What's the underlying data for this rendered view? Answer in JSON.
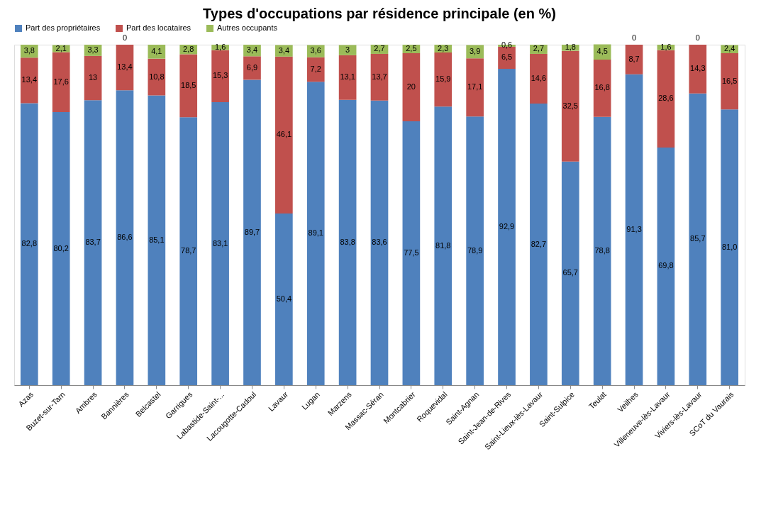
{
  "chart_data": {
    "type": "bar",
    "title": "Types d'occupations par résidence principale (en %)",
    "stacked": true,
    "legend": "top",
    "grid": false,
    "tick_labels": "x",
    "ylim": [
      0,
      100
    ],
    "categories": [
      "Azas",
      "Buzet-sur-Tarn",
      "Ambres",
      "Bannières",
      "Belcastel",
      "Garrigues",
      "Labastide-Saint-...",
      "Lacougotte-Cadoul",
      "Lavaur",
      "Lugan",
      "Marzens",
      "Massac-Séran",
      "Montcabrier",
      "Roquevidal",
      "Saint-Agnan",
      "Saint-Jean-de-Rives",
      "Saint-Lieux-lès-Lavaur",
      "Saint-Sulpice",
      "Teulat",
      "Veilhes",
      "Villeneuve-lès-Lavaur",
      "Viviers-lès-Lavaur",
      "SCoT du Vaurais"
    ],
    "series": [
      {
        "name": "Part des propriétaires",
        "color": "#4f81bd",
        "values": [
          82.8,
          80.2,
          83.7,
          86.6,
          85.1,
          78.7,
          83.1,
          89.7,
          50.4,
          89.1,
          83.8,
          83.6,
          77.5,
          81.8,
          78.9,
          92.9,
          82.7,
          65.7,
          78.8,
          91.3,
          69.8,
          85.7,
          81.0
        ],
        "value_labels": [
          "82,8",
          "80,2",
          "83,7",
          "86,6",
          "85,1",
          "78,7",
          "83,1",
          "89,7",
          "50,4",
          "89,1",
          "83,8",
          "83,6",
          "77,5",
          "81,8",
          "78,9",
          "92,9",
          "82,7",
          "65,7",
          "78,8",
          "91,3",
          "69,8",
          "85,7",
          "81,0"
        ]
      },
      {
        "name": "Part des locataires",
        "color": "#c0504d",
        "values": [
          13.4,
          17.6,
          13,
          13.4,
          10.8,
          18.5,
          15.3,
          6.9,
          46.1,
          7.2,
          13.1,
          13.7,
          20,
          15.9,
          17.1,
          6.5,
          14.6,
          32.5,
          16.8,
          8.7,
          28.6,
          14.3,
          16.5
        ],
        "value_labels": [
          "13,4",
          "17,6",
          "13",
          "13,4",
          "10,8",
          "18,5",
          "15,3",
          "6,9",
          "46,1",
          "7,2",
          "13,1",
          "13,7",
          "20",
          "15,9",
          "17,1",
          "6,5",
          "14,6",
          "32,5",
          "16,8",
          "8,7",
          "28,6",
          "14,3",
          "16,5"
        ]
      },
      {
        "name": "Autres occupants",
        "color": "#9bbb59",
        "values": [
          3.8,
          2.1,
          3.3,
          0,
          4.1,
          2.8,
          1.6,
          3.4,
          3.4,
          3.6,
          3,
          2.7,
          2.5,
          2.3,
          3.9,
          0.6,
          2.7,
          1.8,
          4.5,
          0,
          1.6,
          0,
          2.4
        ],
        "value_labels": [
          "3,8",
          "2,1",
          "3,3",
          "0",
          "4,1",
          "2,8",
          "1,6",
          "3,4",
          "3,4",
          "3,6",
          "3",
          "2,7",
          "2,5",
          "2,3",
          "3,9",
          "0,6",
          "2,7",
          "1,8",
          "4,5",
          "0",
          "1,6",
          "0",
          "2,4"
        ]
      }
    ]
  }
}
